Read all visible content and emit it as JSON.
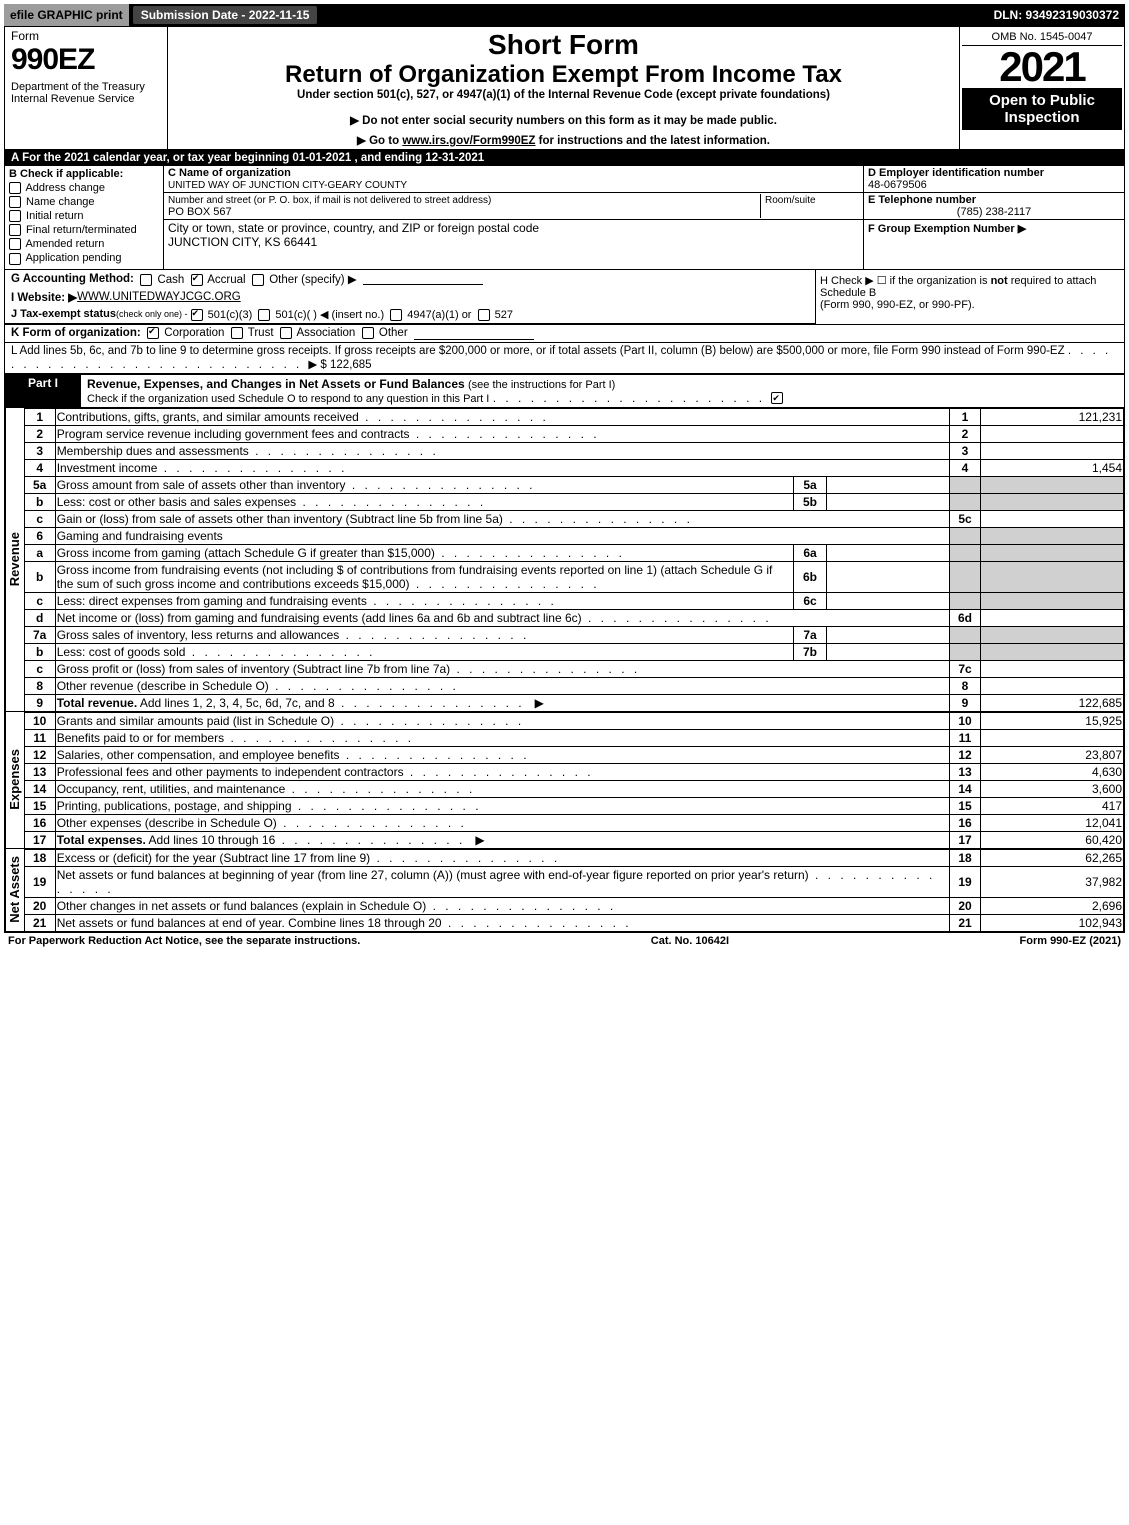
{
  "topbar": {
    "efile": "efile GRAPHIC print",
    "submission": "Submission Date - 2022-11-15",
    "dln": "DLN: 93492319030372"
  },
  "header": {
    "form": "Form",
    "big": "990EZ",
    "dept": "Department of the Treasury\nInternal Revenue Service",
    "short": "Short Form",
    "return": "Return of Organization Exempt From Income Tax",
    "under": "Under section 501(c), 527, or 4947(a)(1) of the Internal Revenue Code (except private foundations)",
    "donot": "▶ Do not enter social security numbers on this form as it may be made public.",
    "goto_pre": "▶ Go to ",
    "goto_link": "www.irs.gov/Form990EZ",
    "goto_post": " for instructions and the latest information.",
    "omb": "OMB No. 1545-0047",
    "year": "2021",
    "open": "Open to Public Inspection"
  },
  "rowA": "A  For the 2021 calendar year, or tax year beginning 01-01-2021 , and ending 12-31-2021",
  "B": {
    "label": "B  Check if applicable:",
    "opts": [
      "Address change",
      "Name change",
      "Initial return",
      "Final return/terminated",
      "Amended return",
      "Application pending"
    ]
  },
  "C": {
    "name_label": "C Name of organization",
    "name": "UNITED WAY OF JUNCTION CITY-GEARY COUNTY",
    "street_label": "Number and street (or P. O. box, if mail is not delivered to street address)",
    "room_label": "Room/suite",
    "street": "PO BOX 567",
    "city_label": "City or town, state or province, country, and ZIP or foreign postal code",
    "city": "JUNCTION CITY, KS  66441"
  },
  "DEF": {
    "d_label": "D Employer identification number",
    "d": "48-0679506",
    "e_label": "E Telephone number",
    "e": "(785) 238-2117",
    "f_label": "F Group Exemption Number  ▶"
  },
  "G": {
    "label": "G Accounting Method:",
    "opts": [
      "Cash",
      "Accrual",
      "Other (specify) ▶"
    ],
    "checked": 1
  },
  "H": {
    "text1": "H  Check ▶  ☐  if the organization is ",
    "bold": "not",
    "text2": " required to attach Schedule B",
    "text3": "(Form 990, 990-EZ, or 990-PF)."
  },
  "I": {
    "label": "I Website: ▶",
    "val": "WWW.UNITEDWAYJCGC.ORG"
  },
  "J": {
    "label": "J Tax-exempt status ",
    "sub": "(check only one) - ",
    "opts": [
      "501(c)(3)",
      "501(c)(   ) ◀ (insert no.)",
      "4947(a)(1) or",
      "527"
    ],
    "checked": 0
  },
  "K": {
    "label": "K Form of organization:",
    "opts": [
      "Corporation",
      "Trust",
      "Association",
      "Other"
    ],
    "checked": 0
  },
  "L": {
    "text": "L Add lines 5b, 6c, and 7b to line 9 to determine gross receipts. If gross receipts are $200,000 or more, or if total assets (Part II, column (B) below) are $500,000 or more, file Form 990 instead of Form 990-EZ",
    "amt": "▶ $ 122,685"
  },
  "part1": {
    "title": "Part I",
    "header": "Revenue, Expenses, and Changes in Net Assets or Fund Balances ",
    "instr": "(see the instructions for Part I)",
    "check_text": "Check if the organization used Schedule O to respond to any question in this Part I",
    "checked": true
  },
  "sections": {
    "revenue_label": "Revenue",
    "expenses_label": "Expenses",
    "netassets_label": "Net Assets"
  },
  "lines": [
    {
      "n": "1",
      "d": "Contributions, gifts, grants, and similar amounts received",
      "ln": "1",
      "amt": "121,231"
    },
    {
      "n": "2",
      "d": "Program service revenue including government fees and contracts",
      "ln": "2",
      "amt": ""
    },
    {
      "n": "3",
      "d": "Membership dues and assessments",
      "ln": "3",
      "amt": ""
    },
    {
      "n": "4",
      "d": "Investment income",
      "ln": "4",
      "amt": "1,454"
    },
    {
      "n": "5a",
      "d": "Gross amount from sale of assets other than inventory",
      "mid": "5a",
      "midv": ""
    },
    {
      "n": "b",
      "d": "Less: cost or other basis and sales expenses",
      "mid": "5b",
      "midv": ""
    },
    {
      "n": "c",
      "d": "Gain or (loss) from sale of assets other than inventory (Subtract line 5b from line 5a)",
      "ln": "5c",
      "amt": ""
    },
    {
      "n": "6",
      "d": "Gaming and fundraising events"
    },
    {
      "n": "a",
      "d": "Gross income from gaming (attach Schedule G if greater than $15,000)",
      "mid": "6a",
      "midv": ""
    },
    {
      "n": "b",
      "d": "Gross income from fundraising events (not including $                          of contributions from fundraising events reported on line 1) (attach Schedule G if the sum of such gross income and contributions exceeds $15,000)",
      "mid": "6b",
      "midv": ""
    },
    {
      "n": "c",
      "d": "Less: direct expenses from gaming and fundraising events",
      "mid": "6c",
      "midv": ""
    },
    {
      "n": "d",
      "d": "Net income or (loss) from gaming and fundraising events (add lines 6a and 6b and subtract line 6c)",
      "ln": "6d",
      "amt": ""
    },
    {
      "n": "7a",
      "d": "Gross sales of inventory, less returns and allowances",
      "mid": "7a",
      "midv": ""
    },
    {
      "n": "b",
      "d": "Less: cost of goods sold",
      "mid": "7b",
      "midv": ""
    },
    {
      "n": "c",
      "d": "Gross profit or (loss) from sales of inventory (Subtract line 7b from line 7a)",
      "ln": "7c",
      "amt": ""
    },
    {
      "n": "8",
      "d": "Other revenue (describe in Schedule O)",
      "ln": "8",
      "amt": ""
    },
    {
      "n": "9",
      "bold": true,
      "d": "Total revenue. Add lines 1, 2, 3, 4, 5c, 6d, 7c, and 8",
      "arrow": true,
      "ln": "9",
      "amt": "122,685"
    }
  ],
  "exp_lines": [
    {
      "n": "10",
      "d": "Grants and similar amounts paid (list in Schedule O)",
      "ln": "10",
      "amt": "15,925"
    },
    {
      "n": "11",
      "d": "Benefits paid to or for members",
      "ln": "11",
      "amt": ""
    },
    {
      "n": "12",
      "d": "Salaries, other compensation, and employee benefits",
      "ln": "12",
      "amt": "23,807"
    },
    {
      "n": "13",
      "d": "Professional fees and other payments to independent contractors",
      "ln": "13",
      "amt": "4,630"
    },
    {
      "n": "14",
      "d": "Occupancy, rent, utilities, and maintenance",
      "ln": "14",
      "amt": "3,600"
    },
    {
      "n": "15",
      "d": "Printing, publications, postage, and shipping",
      "ln": "15",
      "amt": "417"
    },
    {
      "n": "16",
      "d": "Other expenses (describe in Schedule O)",
      "ln": "16",
      "amt": "12,041"
    },
    {
      "n": "17",
      "bold": true,
      "d": "Total expenses. Add lines 10 through 16",
      "arrow": true,
      "ln": "17",
      "amt": "60,420"
    }
  ],
  "net_lines": [
    {
      "n": "18",
      "d": "Excess or (deficit) for the year (Subtract line 17 from line 9)",
      "ln": "18",
      "amt": "62,265"
    },
    {
      "n": "19",
      "d": "Net assets or fund balances at beginning of year (from line 27, column (A)) (must agree with end-of-year figure reported on prior year's return)",
      "ln": "19",
      "amt": "37,982"
    },
    {
      "n": "20",
      "d": "Other changes in net assets or fund balances (explain in Schedule O)",
      "ln": "20",
      "amt": "2,696"
    },
    {
      "n": "21",
      "d": "Net assets or fund balances at end of year. Combine lines 18 through 20",
      "ln": "21",
      "amt": "102,943"
    }
  ],
  "footer": {
    "left": "For Paperwork Reduction Act Notice, see the separate instructions.",
    "mid": "Cat. No. 10642I",
    "right_pre": "Form ",
    "right_bold": "990-EZ",
    "right_post": " (2021)"
  }
}
